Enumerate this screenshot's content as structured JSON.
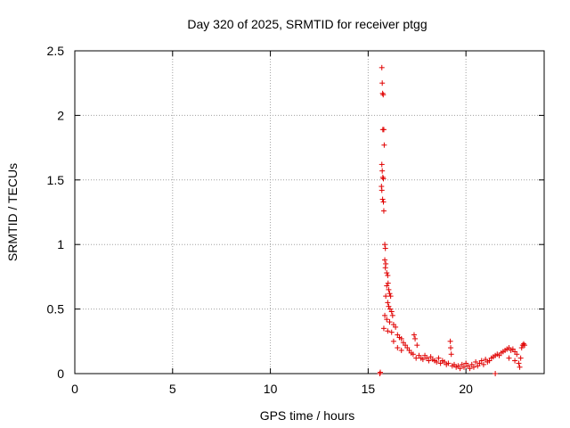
{
  "chart_data": {
    "type": "scatter",
    "title": "Day 320 of 2025, SRMTID for receiver ptgg",
    "xlabel": "GPS time / hours",
    "ylabel": "SRMTID / TECUs",
    "xlim": [
      0,
      24
    ],
    "ylim": [
      0,
      2.5
    ],
    "xticks": [
      0,
      5,
      10,
      15,
      20
    ],
    "yticks": [
      0,
      0.5,
      1,
      1.5,
      2,
      2.5
    ],
    "xtick_labels": [
      "0",
      "5",
      "10",
      "15",
      "20"
    ],
    "ytick_labels": [
      "0",
      "0.5",
      "1",
      "1.5",
      "2",
      "2.5"
    ],
    "grid": true,
    "marker": "+",
    "color": "#e00000",
    "series": [
      {
        "name": "SRMTID",
        "points": [
          [
            15.6,
            0.0
          ],
          [
            15.62,
            0.01
          ],
          [
            15.7,
            2.37
          ],
          [
            15.72,
            2.25
          ],
          [
            15.74,
            2.17
          ],
          [
            15.77,
            2.16
          ],
          [
            15.75,
            1.89
          ],
          [
            15.8,
            1.89
          ],
          [
            15.82,
            1.77
          ],
          [
            15.7,
            1.62
          ],
          [
            15.72,
            1.57
          ],
          [
            15.75,
            1.52
          ],
          [
            15.78,
            1.51
          ],
          [
            15.68,
            1.45
          ],
          [
            15.7,
            1.42
          ],
          [
            15.74,
            1.35
          ],
          [
            15.78,
            1.33
          ],
          [
            15.8,
            1.26
          ],
          [
            15.85,
            1.0
          ],
          [
            15.88,
            0.97
          ],
          [
            15.85,
            0.88
          ],
          [
            15.9,
            0.85
          ],
          [
            15.88,
            0.82
          ],
          [
            15.95,
            0.78
          ],
          [
            16.0,
            0.76
          ],
          [
            16.02,
            0.7
          ],
          [
            15.95,
            0.68
          ],
          [
            16.05,
            0.65
          ],
          [
            16.1,
            0.62
          ],
          [
            16.15,
            0.6
          ],
          [
            15.9,
            0.6
          ],
          [
            16.0,
            0.55
          ],
          [
            16.05,
            0.52
          ],
          [
            16.12,
            0.5
          ],
          [
            16.2,
            0.48
          ],
          [
            16.25,
            0.45
          ],
          [
            15.85,
            0.45
          ],
          [
            15.95,
            0.42
          ],
          [
            16.1,
            0.4
          ],
          [
            16.3,
            0.38
          ],
          [
            16.4,
            0.36
          ],
          [
            15.8,
            0.35
          ],
          [
            16.0,
            0.33
          ],
          [
            16.2,
            0.32
          ],
          [
            16.5,
            0.3
          ],
          [
            16.6,
            0.28
          ],
          [
            16.7,
            0.27
          ],
          [
            16.3,
            0.25
          ],
          [
            16.8,
            0.24
          ],
          [
            16.9,
            0.22
          ],
          [
            17.0,
            0.2
          ],
          [
            16.5,
            0.2
          ],
          [
            16.7,
            0.18
          ],
          [
            17.1,
            0.18
          ],
          [
            17.2,
            0.16
          ],
          [
            17.3,
            0.15
          ],
          [
            17.35,
            0.3
          ],
          [
            17.4,
            0.27
          ],
          [
            17.5,
            0.22
          ],
          [
            17.45,
            0.12
          ],
          [
            17.6,
            0.14
          ],
          [
            17.7,
            0.12
          ],
          [
            17.8,
            0.11
          ],
          [
            17.9,
            0.14
          ],
          [
            18.0,
            0.12
          ],
          [
            18.1,
            0.1
          ],
          [
            18.2,
            0.13
          ],
          [
            18.3,
            0.11
          ],
          [
            18.4,
            0.1
          ],
          [
            18.5,
            0.09
          ],
          [
            18.6,
            0.12
          ],
          [
            18.7,
            0.08
          ],
          [
            18.8,
            0.1
          ],
          [
            18.9,
            0.09
          ],
          [
            19.0,
            0.07
          ],
          [
            19.1,
            0.08
          ],
          [
            19.2,
            0.25
          ],
          [
            19.22,
            0.2
          ],
          [
            19.25,
            0.15
          ],
          [
            19.3,
            0.06
          ],
          [
            19.4,
            0.07
          ],
          [
            19.5,
            0.05
          ],
          [
            19.6,
            0.06
          ],
          [
            19.7,
            0.04
          ],
          [
            19.8,
            0.07
          ],
          [
            19.9,
            0.05
          ],
          [
            20.0,
            0.08
          ],
          [
            20.1,
            0.06
          ],
          [
            20.2,
            0.04
          ],
          [
            20.3,
            0.07
          ],
          [
            20.4,
            0.05
          ],
          [
            20.5,
            0.09
          ],
          [
            20.6,
            0.06
          ],
          [
            20.7,
            0.08
          ],
          [
            20.8,
            0.1
          ],
          [
            20.9,
            0.07
          ],
          [
            21.0,
            0.11
          ],
          [
            21.1,
            0.09
          ],
          [
            21.2,
            0.1
          ],
          [
            21.3,
            0.12
          ],
          [
            21.4,
            0.13
          ],
          [
            21.5,
            0.0
          ],
          [
            21.5,
            0.14
          ],
          [
            21.6,
            0.15
          ],
          [
            21.7,
            0.14
          ],
          [
            21.8,
            0.16
          ],
          [
            21.9,
            0.17
          ],
          [
            22.0,
            0.18
          ],
          [
            22.1,
            0.19
          ],
          [
            22.2,
            0.2
          ],
          [
            22.3,
            0.18
          ],
          [
            22.4,
            0.19
          ],
          [
            22.5,
            0.17
          ],
          [
            22.6,
            0.15
          ],
          [
            22.2,
            0.12
          ],
          [
            22.5,
            0.1
          ],
          [
            22.7,
            0.08
          ],
          [
            22.75,
            0.05
          ],
          [
            22.8,
            0.12
          ],
          [
            22.85,
            0.2
          ],
          [
            22.9,
            0.22
          ],
          [
            22.95,
            0.23
          ],
          [
            23.0,
            0.22
          ]
        ]
      }
    ]
  }
}
